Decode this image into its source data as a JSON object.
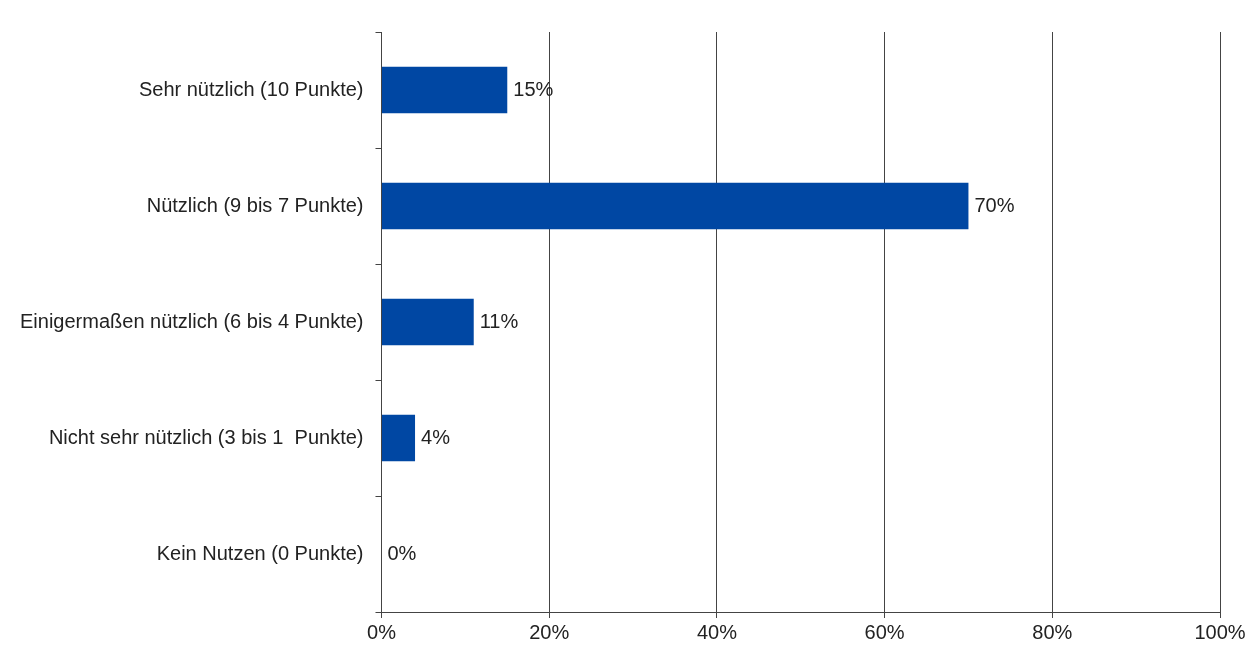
{
  "chart_data": {
    "type": "bar",
    "orientation": "horizontal",
    "categories": [
      "Sehr nützlich (10 Punkte)",
      "Nützlich (9 bis 7 Punkte)",
      "Einigermaßen nützlich (6 bis 4 Punkte)",
      "Nicht sehr nützlich (3 bis 1  Punkte)",
      "Kein Nutzen (0 Punkte)"
    ],
    "values": [
      15,
      70,
      11,
      4,
      0
    ],
    "color": "#0047a3",
    "value_labels": [
      "15%",
      "70%",
      "11%",
      "4%",
      "0%"
    ],
    "xlim": [
      0,
      100
    ],
    "xticks": [
      {
        "value": 0,
        "label": "0%"
      },
      {
        "value": 20,
        "label": "20%"
      },
      {
        "value": 40,
        "label": "40%"
      },
      {
        "value": 60,
        "label": "60%"
      },
      {
        "value": 80,
        "label": "80%"
      },
      {
        "value": 100,
        "label": "100%"
      }
    ],
    "grid": "x",
    "legend": false
  }
}
